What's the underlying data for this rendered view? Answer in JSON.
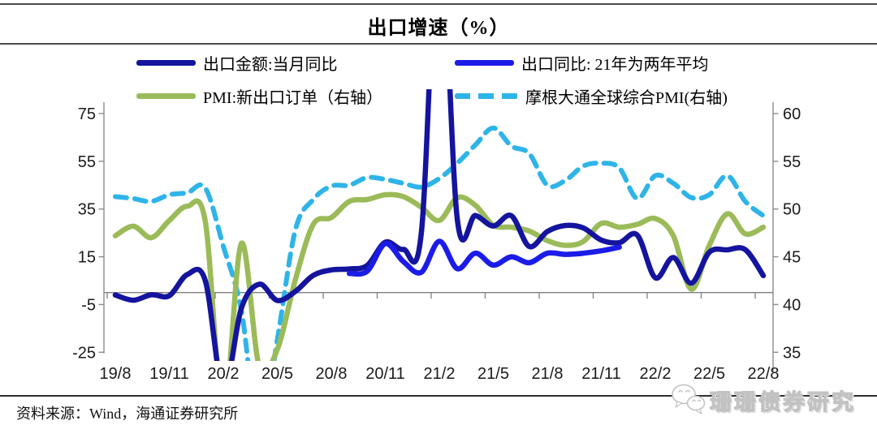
{
  "header": {
    "title": "出口增速（%）"
  },
  "legend": [
    {
      "id": "export-yoy",
      "label": "出口金额:当月同比",
      "color": "#14149e",
      "dashed": false
    },
    {
      "id": "export-2yr-avg",
      "label": "出口同比: 21年为两年平均",
      "color": "#1c1ce8",
      "dashed": false
    },
    {
      "id": "pmi-new-orders",
      "label": "PMI:新出口订单（右轴）",
      "color": "#9bbb59",
      "dashed": false
    },
    {
      "id": "jpm-global-pmi",
      "label": "摩根大通全球综合PMI(右轴)",
      "color": "#2fb4e9",
      "dashed": true
    }
  ],
  "chart_data": {
    "type": "line",
    "title": "出口增速（%）",
    "frequency": "monthly",
    "x_start": "19/8",
    "x_end": "22/8",
    "n_points": 37,
    "x_labels": [
      "19/8",
      "19/11",
      "20/2",
      "20/5",
      "20/8",
      "20/11",
      "21/2",
      "21/5",
      "21/8",
      "21/11",
      "22/2",
      "22/5",
      "22/8"
    ],
    "points_per_label": 3,
    "left_axis": {
      "ticks": [
        75,
        55,
        35,
        15,
        -5,
        -25
      ],
      "min": -25,
      "max": 75
    },
    "right_axis": {
      "ticks": [
        60,
        55,
        50,
        45,
        40,
        35
      ],
      "min": 35,
      "max": 60
    },
    "grid": "zero-line-only",
    "legend_position": "top",
    "series": [
      {
        "name": "出口金额:当月同比",
        "axis": "left",
        "color": "#14149e",
        "style": "solid",
        "start_index": 0,
        "values": [
          -1.0,
          -3.2,
          -0.9,
          -1.3,
          7.6,
          5.0,
          -40.6,
          -6.6,
          3.5,
          -3.3,
          0.5,
          7.2,
          9.5,
          9.9,
          11.4,
          21.1,
          18.1,
          24.8,
          154.9,
          30.6,
          32.3,
          27.9,
          32.2,
          19.3,
          25.6,
          28.1,
          27.1,
          22.0,
          20.9,
          24.1,
          6.2,
          14.7,
          3.9,
          16.9,
          17.9,
          18.0,
          7.1
        ]
      },
      {
        "name": "出口同比: 21年为两年平均",
        "axis": "left",
        "color": "#1c1ce8",
        "style": "solid",
        "start_index": 13,
        "values": [
          8.0,
          9.0,
          20.5,
          13.0,
          8.5,
          21.5,
          10.0,
          16.5,
          11.5,
          15.0,
          12.5,
          16.5,
          16.0,
          16.5,
          17.5,
          19.0
        ]
      },
      {
        "name": "PMI:新出口订单（右轴）",
        "axis": "right",
        "color": "#9bbb59",
        "style": "solid",
        "start_index": 0,
        "values": [
          47.2,
          48.2,
          47.0,
          48.8,
          50.3,
          48.7,
          28.7,
          46.4,
          33.5,
          35.3,
          42.6,
          48.4,
          49.1,
          50.8,
          51.0,
          51.5,
          51.3,
          50.2,
          48.8,
          51.2,
          50.4,
          48.3,
          48.1,
          47.7,
          46.7,
          46.2,
          46.6,
          48.5,
          48.1,
          48.4,
          49.0,
          47.2,
          41.6,
          46.2,
          49.5,
          47.4,
          48.1
        ]
      },
      {
        "name": "摩根大通全球综合PMI(右轴)",
        "axis": "right",
        "color": "#2fb4e9",
        "style": "dashed",
        "start_index": 0,
        "values": [
          51.3,
          51.1,
          50.8,
          51.5,
          51.7,
          52.2,
          46.1,
          39.4,
          26.2,
          36.3,
          47.8,
          51.0,
          52.4,
          52.5,
          53.3,
          53.1,
          52.7,
          52.3,
          53.2,
          54.8,
          56.7,
          58.5,
          56.6,
          55.8,
          52.5,
          53.0,
          54.5,
          54.8,
          54.3,
          51.1,
          53.5,
          52.7,
          51.2,
          51.5,
          53.5,
          50.8,
          49.3
        ]
      }
    ]
  },
  "footer": {
    "source": "资料来源：Wind，海通证券研究所",
    "watermark": "珊珊债券研究"
  }
}
